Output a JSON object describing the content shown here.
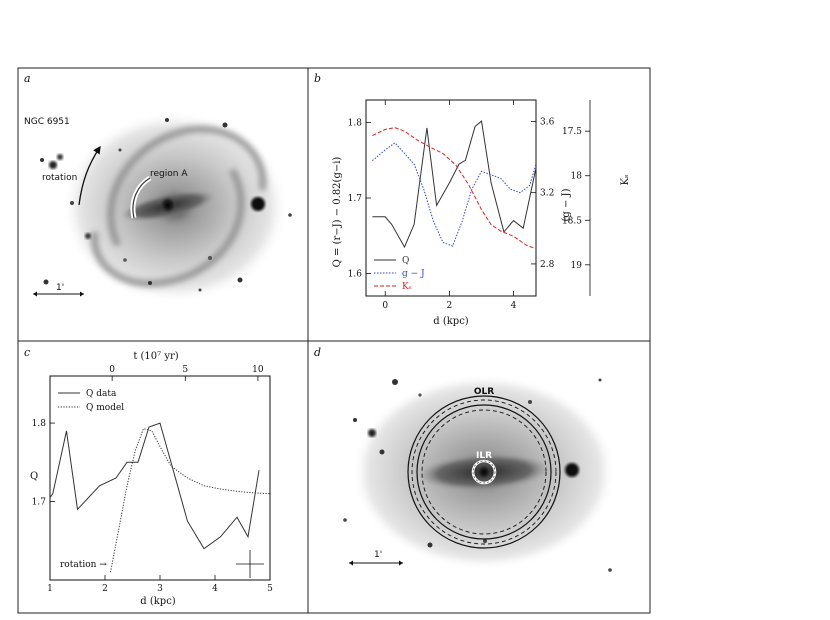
{
  "panels": {
    "a": {
      "letter": "a",
      "galaxy_name": "NGC 6951",
      "rotation_label": "rotation",
      "region_label": "region A",
      "scale_label": "1'"
    },
    "d": {
      "letter": "d",
      "olr_label": "OLR",
      "ilr_label": "ILR",
      "scale_label": "1'"
    }
  },
  "colors": {
    "Q": "#333333",
    "g_J": "#3344cc",
    "Ks": "#dd2222",
    "model": "#333333"
  },
  "chart_data": [
    {
      "panel": "b",
      "letter": "b",
      "type": "line",
      "xlabel": "d (kpc)",
      "ylabel": "Q = (r−J) − 0.82(g−i)",
      "y2label": "(g − J)",
      "y3label": "Kₛ",
      "xlim": [
        -0.6,
        4.7
      ],
      "ylim": [
        1.57,
        1.83
      ],
      "y2lim": [
        2.62,
        3.72
      ],
      "y3lim": [
        19.35,
        17.15
      ],
      "x_ticks": [
        0,
        2,
        4
      ],
      "y_ticks": [
        1.6,
        1.7,
        1.8
      ],
      "y2_ticks": [
        2.8,
        3.2,
        3.6
      ],
      "y3_ticks": [
        17.5,
        18,
        18.5,
        19
      ],
      "legend": [
        "Q",
        "g − J",
        "Kₛ"
      ],
      "series": [
        {
          "name": "Q",
          "key": "Q",
          "axis": "y",
          "dash": "",
          "x": [
            -0.4,
            0.0,
            0.2,
            0.6,
            0.9,
            1.3,
            1.6,
            2.0,
            2.3,
            2.5,
            2.8,
            3.0,
            3.3,
            3.7,
            4.0,
            4.3,
            4.6,
            4.7
          ],
          "y": [
            1.675,
            1.675,
            1.665,
            1.635,
            1.665,
            1.793,
            1.69,
            1.72,
            1.745,
            1.75,
            1.795,
            1.802,
            1.72,
            1.655,
            1.67,
            1.66,
            1.72,
            1.74
          ]
        },
        {
          "name": "g − J",
          "key": "g_J",
          "axis": "y2",
          "dash": "1.5,1.5",
          "x": [
            -0.4,
            0.0,
            0.3,
            0.6,
            0.9,
            1.2,
            1.5,
            1.8,
            2.1,
            2.4,
            2.7,
            3.0,
            3.3,
            3.6,
            3.9,
            4.2,
            4.5,
            4.7
          ],
          "y": [
            3.38,
            3.44,
            3.48,
            3.42,
            3.36,
            3.22,
            3.04,
            2.92,
            2.9,
            3.04,
            3.22,
            3.32,
            3.3,
            3.28,
            3.22,
            3.2,
            3.24,
            3.36
          ]
        },
        {
          "name": "Kₛ",
          "key": "Ks",
          "axis": "y3",
          "dash": "4,2",
          "x": [
            -0.4,
            0.0,
            0.3,
            0.6,
            1.0,
            1.4,
            1.8,
            2.2,
            2.6,
            3.0,
            3.3,
            3.6,
            4.0,
            4.4,
            4.7
          ],
          "y": [
            17.55,
            17.48,
            17.46,
            17.5,
            17.6,
            17.68,
            17.75,
            17.88,
            18.1,
            18.38,
            18.55,
            18.62,
            18.68,
            18.78,
            18.82
          ]
        }
      ]
    },
    {
      "panel": "c",
      "letter": "c",
      "type": "line",
      "xlabel": "d (kpc)",
      "ylabel": "Q",
      "x2label": "t (10⁷ yr)",
      "xlim": [
        1,
        5
      ],
      "ylim": [
        1.6,
        1.86
      ],
      "x_ticks": [
        1,
        2,
        3,
        4,
        5
      ],
      "y_ticks": [
        1.7,
        1.8
      ],
      "x2_ticks": [
        0,
        5,
        10
      ],
      "x2_ticks_pos_kpc": [
        2.13,
        3.46,
        4.78
      ],
      "rotation_label": "rotation →",
      "legend": [
        "Q data",
        "Q model"
      ],
      "series": [
        {
          "name": "Q data",
          "key": "Q",
          "dash": "",
          "x": [
            1.0,
            1.05,
            1.3,
            1.5,
            1.9,
            2.2,
            2.4,
            2.6,
            2.8,
            3.0,
            3.3,
            3.5,
            3.8,
            4.1,
            4.4,
            4.6,
            4.8
          ],
          "y": [
            1.705,
            1.71,
            1.79,
            1.69,
            1.72,
            1.73,
            1.75,
            1.75,
            1.795,
            1.8,
            1.725,
            1.675,
            1.64,
            1.655,
            1.68,
            1.655,
            1.74
          ]
        },
        {
          "name": "Q model",
          "key": "model",
          "dash": "1.2,1.5",
          "x": [
            2.1,
            2.25,
            2.4,
            2.55,
            2.7,
            2.85,
            3.0,
            3.2,
            3.5,
            3.8,
            4.1,
            4.4,
            4.7,
            5.0
          ],
          "y": [
            1.61,
            1.665,
            1.72,
            1.765,
            1.793,
            1.79,
            1.77,
            1.745,
            1.73,
            1.72,
            1.716,
            1.713,
            1.711,
            1.71
          ]
        }
      ]
    }
  ]
}
